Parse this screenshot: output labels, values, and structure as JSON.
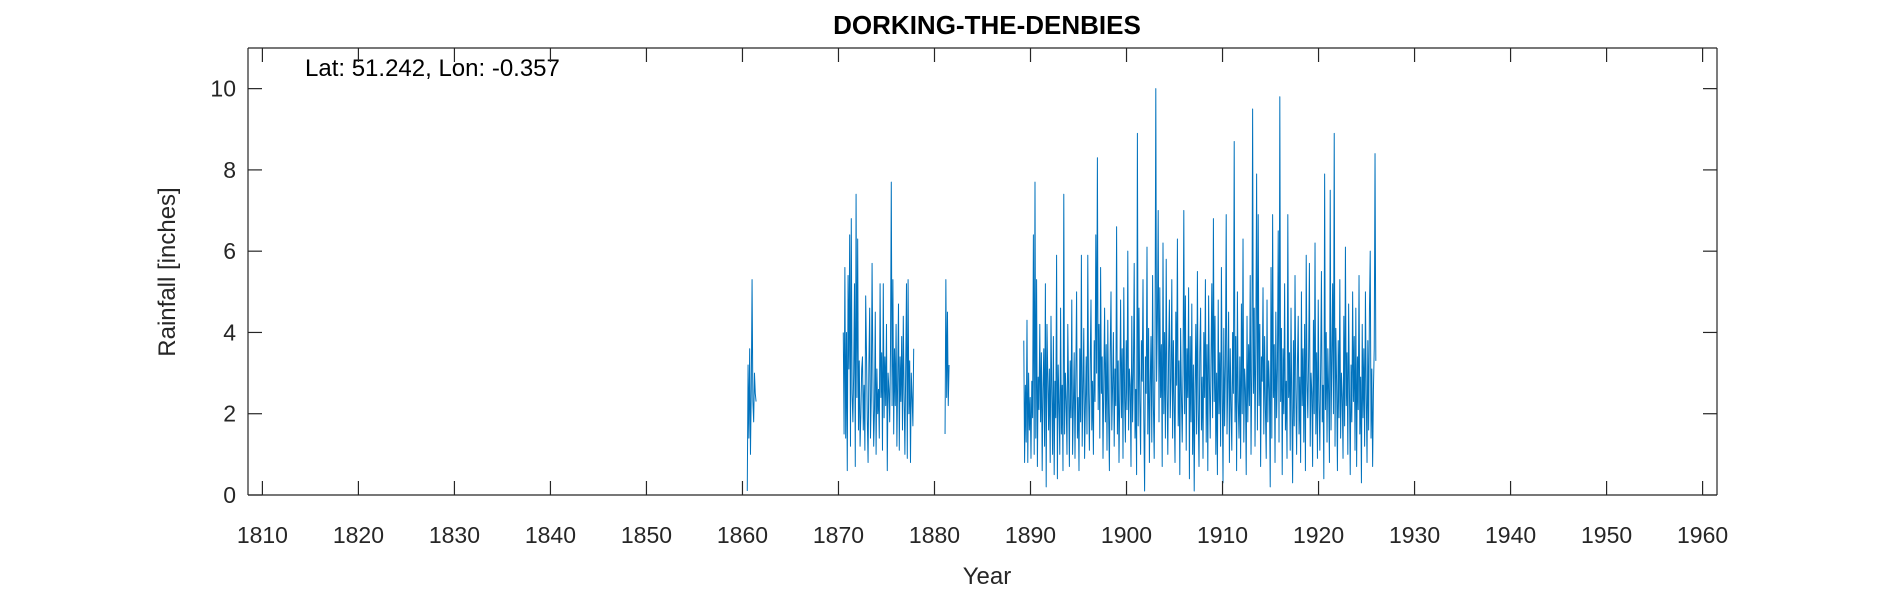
{
  "chart_data": {
    "type": "line",
    "title": "DORKING-THE-DENBIES",
    "annotation": "Lat: 51.242, Lon: -0.357",
    "xlabel": "Year",
    "ylabel": "Rainfall [inches]",
    "xlim": [
      1808.5,
      1961.5
    ],
    "ylim": [
      0,
      11
    ],
    "xticks": [
      1810,
      1820,
      1830,
      1840,
      1850,
      1860,
      1870,
      1880,
      1890,
      1900,
      1910,
      1920,
      1930,
      1940,
      1950,
      1960
    ],
    "yticks": [
      0,
      2,
      4,
      6,
      8,
      10
    ],
    "grid": false,
    "line_color": "#0072BD",
    "series": [
      {
        "segments": [
          {
            "start_year": 1860.5,
            "values": [
              0.1,
              3.2,
              1.4,
              3.6,
              1.0,
              2.6,
              5.3,
              2.3,
              1.8,
              3.0,
              2.5,
              2.3
            ]
          },
          {
            "start_year": 1870.5,
            "values": [
              4.0,
              1.5,
              5.6,
              1.4,
              4.0,
              0.6,
              5.4,
              3.1,
              6.4,
              1.2,
              6.8,
              2.5,
              1.8,
              3.0,
              5.2,
              0.7,
              7.4,
              2.4,
              6.3,
              1.6,
              3.3,
              1.2,
              2.0,
              3.1,
              3.4,
              1.6,
              2.7,
              1.1,
              4.9,
              3.5,
              1.9,
              0.8,
              3.2,
              4.6,
              1.4,
              2.4,
              5.7,
              3.0,
              1.2,
              2.1,
              4.5,
              1.0,
              3.1,
              2.0,
              2.6,
              1.4,
              5.2,
              2.4,
              3.5,
              1.1,
              5.2,
              1.9,
              3.4,
              2.2,
              4.2,
              0.6,
              3.0,
              2.6,
              1.8,
              3.5,
              7.7,
              2.2,
              5.3,
              1.5,
              3.6,
              2.2,
              4.2,
              1.2,
              2.9,
              4.7,
              1.1,
              3.4,
              2.3,
              3.9,
              1.6,
              4.4,
              2.5,
              1.0,
              3.1,
              5.2,
              0.9,
              5.3,
              2.0,
              3.3,
              0.8,
              3.0,
              2.4,
              1.7,
              3.6
            ],
            "note": "gap"
          },
          {
            "start_year": 1881.1,
            "values": [
              1.5,
              5.3,
              2.4,
              4.5,
              2.2,
              3.2
            ]
          },
          {
            "start_year": 1889.3,
            "values": [
              3.8,
              0.8,
              2.7,
              1.3,
              4.3,
              0.8,
              3.0,
              1.6,
              2.4,
              0.9,
              2.8,
              1.9,
              6.4,
              1.0,
              7.7,
              1.4,
              5.3,
              0.7,
              2.9,
              2.1,
              4.2,
              1.8,
              3.5,
              0.6,
              2.6,
              3.6,
              1.2,
              5.2,
              0.2,
              4.2,
              2.9,
              1.6,
              3.1,
              0.8,
              4.4,
              2.5,
              1.0,
              3.9,
              0.5,
              2.8,
              1.9,
              5.9,
              0.4,
              3.2,
              2.2,
              1.0,
              4.6,
              1.5,
              2.7,
              0.6,
              7.4,
              1.5,
              3.0,
              2.3,
              1.0,
              4.2,
              2.6,
              0.7,
              3.3,
              1.9,
              4.8,
              1.0,
              2.2,
              3.5,
              0.9,
              2.9,
              5.0,
              1.4,
              2.4,
              0.6,
              3.6,
              1.8,
              5.9,
              1.2,
              2.6,
              4.1,
              0.9,
              2.2,
              3.4,
              1.5,
              5.9,
              2.5,
              1.1,
              3.2,
              4.8,
              1.6,
              2.8,
              1.0,
              3.8,
              2.3,
              6.4,
              3.0,
              8.3,
              2.1,
              4.2,
              1.4,
              5.6,
              2.5,
              3.4,
              0.9,
              2.8,
              4.6,
              1.8,
              3.7,
              1.1,
              4.3,
              2.0,
              0.6,
              3.5,
              5.0,
              1.6,
              2.7,
              4.0,
              1.2,
              3.1,
              2.2,
              6.6,
              1.5,
              3.3,
              0.8,
              2.5,
              4.8,
              1.9,
              3.6,
              0.9,
              5.1,
              2.4,
              1.3,
              3.8,
              2.1,
              6.0,
              1.6,
              3.1,
              2.7,
              0.7,
              4.4,
              1.8,
              3.0,
              5.7,
              1.4,
              2.6,
              0.5,
              8.9,
              1.7,
              4.6,
              2.3,
              1.0,
              3.8,
              2.8,
              5.3,
              1.9,
              0.1,
              3.4,
              2.5,
              6.1,
              1.5,
              4.1,
              0.8,
              2.7,
              3.9,
              1.3,
              5.4,
              2.2,
              0.9,
              3.5,
              10.0,
              2.8,
              4.3,
              7.0,
              1.8,
              5.1,
              2.4,
              3.7,
              0.7,
              6.2,
              2.0,
              4.0,
              1.4,
              5.8,
              2.6,
              1.0,
              3.5,
              4.8,
              1.9,
              2.9,
              5.3,
              1.4,
              3.8,
              2.2,
              0.8,
              4.5,
              2.7,
              6.3,
              1.7,
              3.3,
              0.5,
              4.1,
              2.5,
              1.3,
              3.0,
              7.0,
              2.0,
              4.9,
              1.1,
              3.6,
              2.4,
              5.1,
              0.4,
              3.9,
              1.8,
              4.7,
              1.0,
              3.2,
              0.1,
              2.6,
              4.2,
              1.5,
              5.5,
              2.1,
              0.7,
              3.5,
              4.6,
              1.6,
              2.9,
              0.9,
              4.0,
              2.4,
              5.3,
              1.3,
              3.7,
              0.6,
              4.9,
              2.8,
              1.4,
              3.3,
              5.2,
              1.9,
              6.8,
              2.3,
              4.4,
              1.0,
              3.0,
              0.5,
              4.8,
              2.0,
              3.5,
              1.2,
              5.6,
              2.6,
              0.3,
              4.1,
              1.7,
              3.2,
              6.9,
              1.5,
              2.8,
              4.5,
              0.8,
              3.6,
              2.2,
              1.1,
              4.0,
              2.5,
              8.7,
              1.8,
              3.9,
              0.6,
              5.0,
              2.3,
              1.4,
              3.4,
              0.9,
              4.7,
              2.0,
              6.3,
              1.3,
              3.1,
              2.6,
              0.5,
              4.4,
              1.8,
              3.7,
              2.2,
              5.4,
              1.0,
              3.0,
              9.5,
              2.5,
              4.6,
              1.2,
              3.8,
              7.9,
              1.6,
              6.9,
              2.2,
              4.2,
              0.7,
              3.4,
              2.8,
              5.1,
              1.5,
              3.9,
              2.1,
              0.9,
              4.8,
              1.8,
              3.3,
              2.6,
              0.2,
              5.6,
              1.4,
              6.9,
              2.4,
              3.7,
              0.8,
              4.5,
              1.9,
              3.1,
              6.5,
              1.3,
              9.8,
              2.3,
              4.1,
              0.5,
              3.6,
              2.0,
              5.2,
              1.6,
              2.8,
              0.9,
              6.9,
              2.4,
              3.5,
              1.1,
              4.6,
              2.1,
              0.3,
              3.8,
              1.7,
              5.4,
              2.6,
              1.0,
              3.2,
              4.4,
              1.5,
              2.9,
              0.8,
              5.0,
              2.2,
              3.6,
              1.3,
              4.2,
              0.6,
              5.9,
              2.8,
              1.9,
              3.4,
              5.7,
              1.2,
              3.0,
              2.5,
              0.7,
              4.3,
              2.0,
              6.2,
              1.5,
              3.5,
              0.9,
              4.8,
              2.3,
              1.1,
              3.1,
              5.5,
              1.8,
              2.7,
              0.4,
              7.9,
              2.1,
              4.0,
              1.3,
              3.6,
              2.5,
              0.8,
              7.5,
              1.6,
              3.3,
              5.2,
              2.0,
              8.9,
              1.2,
              4.1,
              2.7,
              0.6,
              3.8,
              1.9,
              5.3,
              1.4,
              3.0,
              2.4,
              0.9,
              4.4,
              1.7,
              6.1,
              2.2,
              3.5,
              1.0,
              4.7,
              2.6,
              0.5,
              3.2,
              1.8,
              5.0,
              2.3,
              3.9,
              1.1,
              4.6,
              0.7,
              3.4,
              2.1,
              5.4,
              1.5,
              2.9,
              0.3,
              4.2,
              1.9,
              3.6,
              1.2,
              5.0,
              2.5,
              0.8,
              3.8,
              1.6,
              4.5,
              6.0,
              1.4,
              3.1,
              0.7,
              2.6,
              3.6,
              8.4,
              3.3
            ]
          }
        ]
      }
    ]
  }
}
